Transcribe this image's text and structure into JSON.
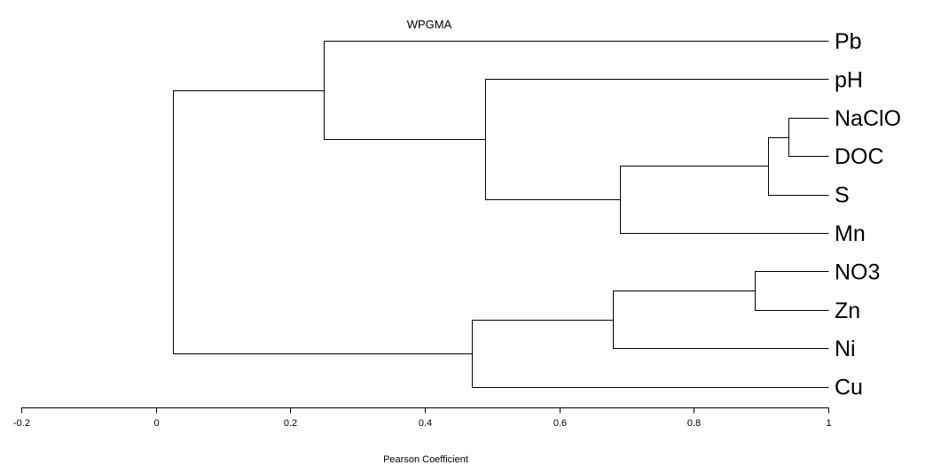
{
  "chart_data": {
    "type": "dendrogram",
    "title": "WPGMA",
    "xlabel": "Pearson Coefficient",
    "xlim": [
      -0.2,
      1
    ],
    "ticks": [
      "-0.2",
      "0",
      "0.2",
      "0.4",
      "0.6",
      "0.8",
      "1"
    ],
    "tick_values": [
      -0.2,
      0,
      0.2,
      0.4,
      0.6,
      0.8,
      1
    ],
    "leaves": [
      "Pb",
      "pH",
      "NaClO",
      "DOC",
      "S",
      "Mn",
      "NO3",
      "Zn",
      "Ni",
      "Cu"
    ],
    "merges": [
      {
        "name": "NaClO+DOC",
        "children": [
          "NaClO",
          "DOC"
        ],
        "similarity": 0.94
      },
      {
        "name": "NaClO+DOC+S",
        "children": [
          "NaClO+DOC",
          "S"
        ],
        "similarity": 0.91
      },
      {
        "name": "NaClO+DOC+S+Mn",
        "children": [
          "NaClO+DOC+S",
          "Mn"
        ],
        "similarity": 0.69
      },
      {
        "name": "pH-group",
        "children": [
          "pH",
          "NaClO+DOC+S+Mn"
        ],
        "similarity": 0.49
      },
      {
        "name": "Pb-group",
        "children": [
          "Pb",
          "pH-group"
        ],
        "similarity": 0.25
      },
      {
        "name": "NO3+Zn",
        "children": [
          "NO3",
          "Zn"
        ],
        "similarity": 0.89
      },
      {
        "name": "NO3+Zn+Ni",
        "children": [
          "NO3+Zn",
          "Ni"
        ],
        "similarity": 0.68
      },
      {
        "name": "Cu-group",
        "children": [
          "NO3+Zn+Ni",
          "Cu"
        ],
        "similarity": 0.47
      },
      {
        "name": "root",
        "children": [
          "Pb-group",
          "Cu-group"
        ],
        "similarity": 0.025
      }
    ]
  }
}
